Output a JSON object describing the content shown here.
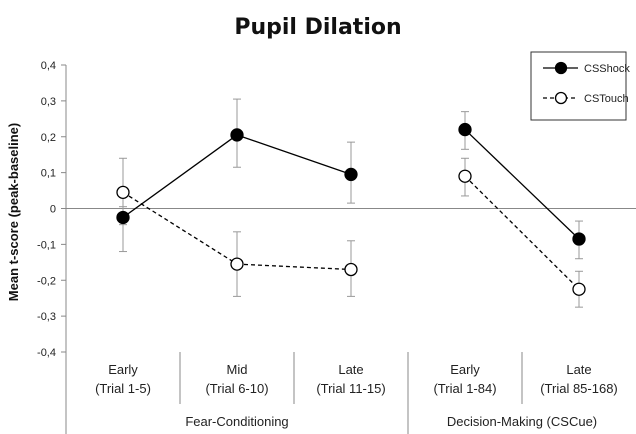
{
  "chart_data": {
    "type": "line",
    "title": "Pupil Dilation",
    "ylabel": "Mean t-score (peak-baseline)",
    "ylim": [
      -0.4,
      0.4
    ],
    "yticks": [
      "0,4",
      "0,3",
      "0,2",
      "0,1",
      "0",
      "-0,1",
      "-0,2",
      "-0,3",
      "-0,4"
    ],
    "ytick_values": [
      0.4,
      0.3,
      0.2,
      0.1,
      0,
      -0.1,
      -0.2,
      -0.3,
      -0.4
    ],
    "categories": [
      {
        "line1": "Early",
        "line2": "(Trial 1-5)"
      },
      {
        "line1": "Mid",
        "line2": "(Trial 6-10)"
      },
      {
        "line1": "Late",
        "line2": "(Trial 11-15)"
      },
      {
        "line1": "Early",
        "line2": "(Trial 1-84)"
      },
      {
        "line1": "Late",
        "line2": "(Trial 85-168)"
      }
    ],
    "groups": [
      {
        "label": "Fear-Conditioning",
        "categories": [
          0,
          1,
          2
        ]
      },
      {
        "label": "Decision-Making (CSCue)",
        "categories": [
          3,
          4
        ]
      }
    ],
    "series": [
      {
        "name": "CSShock",
        "style": "solid",
        "marker": "filled-circle",
        "values": [
          -0.025,
          0.205,
          0.095,
          0.22,
          -0.085
        ],
        "err_low": [
          -0.045,
          0.115,
          0.015,
          0.165,
          -0.14
        ],
        "err_high": [
          0.005,
          0.305,
          0.185,
          0.27,
          -0.035
        ]
      },
      {
        "name": "CSTouch",
        "style": "dashed",
        "marker": "open-circle",
        "values": [
          0.045,
          -0.155,
          -0.17,
          0.09,
          -0.225
        ],
        "err_low": [
          -0.12,
          -0.245,
          -0.245,
          0.035,
          -0.275
        ],
        "err_high": [
          0.14,
          -0.065,
          -0.09,
          0.14,
          -0.175
        ]
      }
    ],
    "segments": [
      [
        0,
        2
      ],
      [
        3,
        4
      ]
    ],
    "legend": "top-right",
    "colors": {
      "line": "#000000",
      "error": "#999999",
      "axis": "#888888"
    }
  }
}
